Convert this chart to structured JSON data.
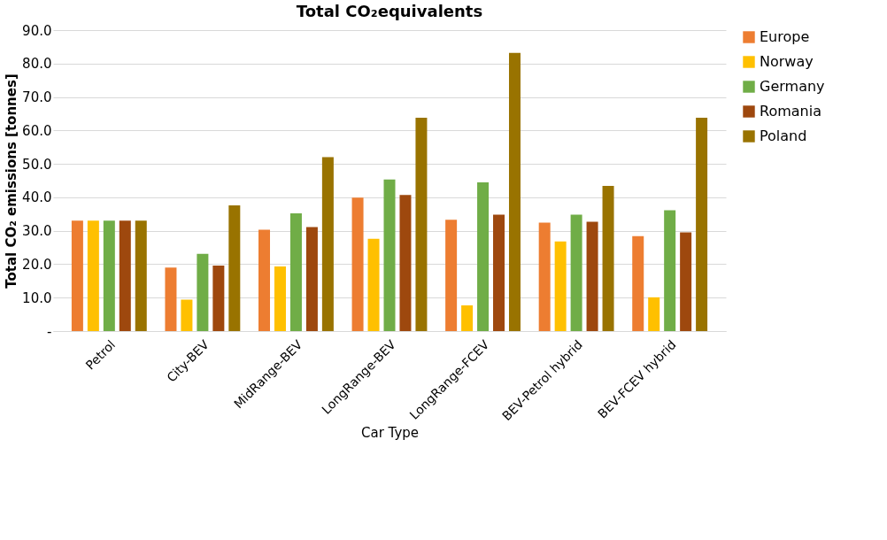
{
  "chart_data": {
    "type": "bar",
    "title": "Total CO₂equivalents",
    "xlabel": "Car Type",
    "ylabel": "Total CO₂ emissions [tonnes]",
    "categories": [
      "Petrol",
      "City-BEV",
      "MidRange-BEV",
      "LongRange-BEV",
      "LongRange-FCEV",
      "BEV-Petrol hybrid",
      "BEV-FCEV hybrid"
    ],
    "series": [
      {
        "name": "Europe",
        "color": "#ed7d31",
        "values": [
          33.0,
          19.0,
          30.3,
          39.9,
          33.3,
          32.4,
          28.4
        ]
      },
      {
        "name": "Norway",
        "color": "#ffc000",
        "values": [
          33.0,
          9.4,
          19.3,
          27.6,
          7.7,
          26.8,
          10.1
        ]
      },
      {
        "name": "Germany",
        "color": "#70ad47",
        "values": [
          33.0,
          23.1,
          35.2,
          45.3,
          44.5,
          34.8,
          36.1
        ]
      },
      {
        "name": "Romania",
        "color": "#9e480e",
        "values": [
          33.0,
          19.6,
          31.1,
          40.7,
          34.8,
          32.7,
          29.5
        ]
      },
      {
        "name": "Poland",
        "color": "#997300",
        "values": [
          33.0,
          37.6,
          52.0,
          63.8,
          83.2,
          43.4,
          63.8
        ]
      }
    ],
    "ylim": [
      0,
      90
    ],
    "yticks": [
      {
        "value": 0,
        "label": "-"
      },
      {
        "value": 10,
        "label": "10.0"
      },
      {
        "value": 20,
        "label": "20.0"
      },
      {
        "value": 30,
        "label": "30.0"
      },
      {
        "value": 40,
        "label": "40.0"
      },
      {
        "value": 50,
        "label": "50.0"
      },
      {
        "value": 60,
        "label": "60.0"
      },
      {
        "value": 70,
        "label": "70.0"
      },
      {
        "value": 80,
        "label": "80.0"
      },
      {
        "value": 90,
        "label": "90.0"
      }
    ],
    "grid": "y",
    "legend": "top right"
  }
}
